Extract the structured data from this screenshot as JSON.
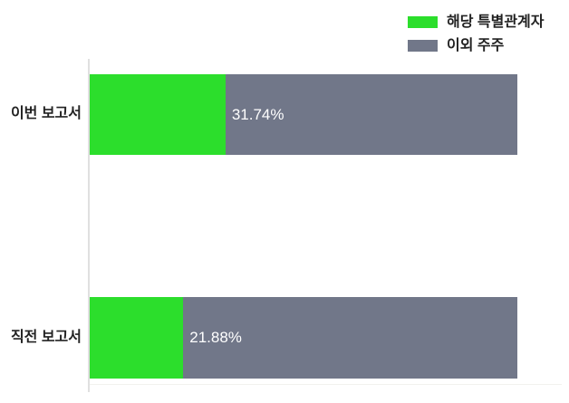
{
  "chart": {
    "legend": [
      {
        "label": "해당 특별관계자",
        "color": "#2cde2c"
      },
      {
        "label": "이외 주주",
        "color": "#717789"
      }
    ],
    "bars": [
      {
        "category": "이번 보고서",
        "value_label": "31.74%"
      },
      {
        "category": "직전 보고서",
        "value_label": "21.88%"
      }
    ]
  },
  "chart_data": {
    "type": "bar",
    "subtype": "horizontal-stacked",
    "categories": [
      "이번 보고서",
      "직전 보고서"
    ],
    "series": [
      {
        "name": "해당 특별관계자",
        "values": [
          31.74,
          21.88
        ],
        "color": "#2cde2c"
      },
      {
        "name": "이외 주주",
        "values": [
          68.26,
          78.12
        ],
        "color": "#717789"
      }
    ],
    "value_labels": [
      "31.74%",
      "21.88%"
    ],
    "xlim": [
      0,
      100
    ],
    "unit": "%",
    "legend_position": "top-right",
    "grid": false,
    "axis_color": "#e0e0e0",
    "value_label_color": "#ffffff",
    "category_label_color": "#222222"
  }
}
